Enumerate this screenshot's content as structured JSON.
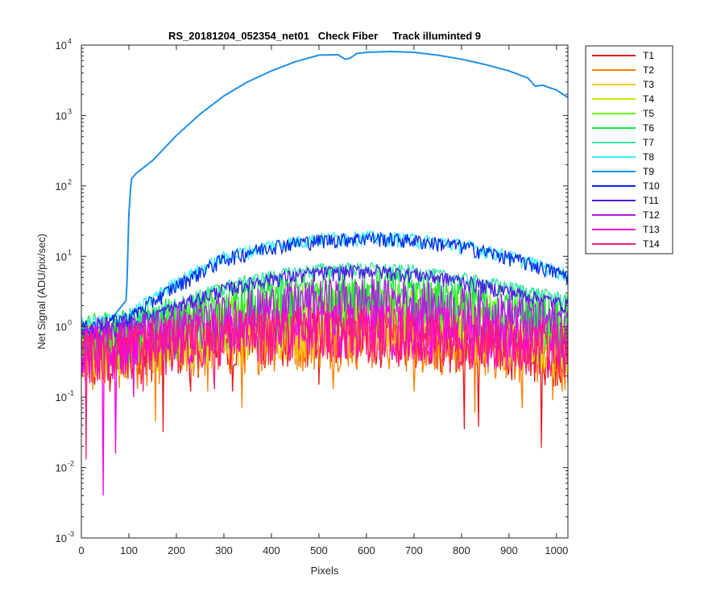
{
  "chart_data": {
    "type": "line",
    "title": "RS_20181204_052354_net01   Check Fiber     Track illuminted 9",
    "xlabel": "Pixels",
    "ylabel": "Net Signal (ADU/pix/sec)",
    "xlim": [
      0,
      1024
    ],
    "ylim": [
      0.001,
      10000
    ],
    "yscale": "log",
    "grid": false,
    "legend_position": "outside-right-top",
    "x_ticks": [
      0,
      100,
      200,
      300,
      400,
      500,
      600,
      700,
      800,
      900,
      1000
    ],
    "x_tick_labels": [
      "0",
      "100",
      "200",
      "300",
      "400",
      "500",
      "600",
      "700",
      "800",
      "900",
      "1000"
    ],
    "y_ticks": [
      0.001,
      0.01,
      0.1,
      1,
      10,
      100,
      1000,
      10000
    ],
    "y_tick_labels": [
      {
        "base": "10",
        "exp": "-3"
      },
      {
        "base": "10",
        "exp": "-2"
      },
      {
        "base": "10",
        "exp": "-1"
      },
      {
        "base": "10",
        "exp": "0"
      },
      {
        "base": "10",
        "exp": "1"
      },
      {
        "base": "10",
        "exp": "2"
      },
      {
        "base": "10",
        "exp": "3"
      },
      {
        "base": "10",
        "exp": "4"
      }
    ],
    "series": [
      {
        "name": "T1",
        "color": "#e41a1c",
        "x": [
          0,
          100,
          200,
          300,
          400,
          500,
          600,
          700,
          800,
          900,
          1024
        ],
        "y": [
          0.45,
          0.5,
          0.6,
          0.7,
          0.85,
          0.9,
          0.9,
          0.85,
          0.7,
          0.6,
          0.45
        ],
        "dips": [
          [
            15,
            0.22
          ],
          [
            28,
            0.15
          ],
          [
            60,
            0.12
          ],
          [
            105,
            0.18
          ],
          [
            172,
            0.032
          ],
          [
            230,
            0.12
          ],
          [
            318,
            0.12
          ],
          [
            500,
            0.15
          ],
          [
            805,
            0.035
          ],
          [
            835,
            0.038
          ],
          [
            968,
            0.019
          ]
        ]
      },
      {
        "name": "T2",
        "color": "#ff8000",
        "x": [
          0,
          100,
          200,
          300,
          400,
          500,
          600,
          700,
          800,
          900,
          1024
        ],
        "y": [
          0.4,
          0.45,
          0.55,
          0.65,
          0.75,
          0.8,
          0.8,
          0.75,
          0.65,
          0.55,
          0.4
        ],
        "dips": [
          [
            118,
            0.13
          ],
          [
            155,
            0.045
          ],
          [
            265,
            0.12
          ],
          [
            337,
            0.07
          ],
          [
            530,
            0.13
          ],
          [
            700,
            0.12
          ],
          [
            828,
            0.06
          ],
          [
            927,
            0.07
          ],
          [
            992,
            0.09
          ]
        ]
      },
      {
        "name": "T3",
        "color": "#ffcc00",
        "x": [
          0,
          100,
          200,
          300,
          400,
          500,
          600,
          700,
          800,
          900,
          1024
        ],
        "y": [
          0.5,
          0.6,
          0.75,
          0.9,
          1.1,
          1.2,
          1.2,
          1.1,
          0.95,
          0.8,
          0.6
        ]
      },
      {
        "name": "T4",
        "color": "#bfef00",
        "x": [
          0,
          100,
          200,
          300,
          400,
          500,
          600,
          700,
          800,
          900,
          1024
        ],
        "y": [
          0.55,
          0.65,
          0.85,
          1.1,
          1.4,
          1.6,
          1.6,
          1.45,
          1.2,
          0.95,
          0.7
        ]
      },
      {
        "name": "T5",
        "color": "#66ff00",
        "x": [
          0,
          100,
          200,
          300,
          400,
          500,
          600,
          700,
          800,
          900,
          1024
        ],
        "y": [
          0.75,
          0.9,
          1.2,
          1.6,
          2.0,
          2.3,
          2.3,
          2.1,
          1.8,
          1.5,
          1.2
        ]
      },
      {
        "name": "T6",
        "color": "#19e63c",
        "x": [
          0,
          100,
          200,
          300,
          400,
          500,
          600,
          700,
          800,
          900,
          1024
        ],
        "y": [
          0.8,
          1.0,
          1.5,
          2.3,
          3.0,
          3.6,
          3.7,
          3.4,
          2.8,
          2.2,
          1.5
        ]
      },
      {
        "name": "T7",
        "color": "#33e6a0",
        "x": [
          0,
          100,
          200,
          300,
          400,
          500,
          600,
          700,
          800,
          900,
          1024
        ],
        "y": [
          0.9,
          1.2,
          2.2,
          3.8,
          5.5,
          6.8,
          7.0,
          6.3,
          5.0,
          3.8,
          2.5
        ]
      },
      {
        "name": "T8",
        "color": "#33f0ff",
        "x": [
          0,
          100,
          200,
          300,
          400,
          500,
          600,
          700,
          800,
          900,
          1024
        ],
        "y": [
          1.1,
          1.5,
          4.5,
          10,
          15,
          18.5,
          19.5,
          18,
          15,
          10.5,
          5.8
        ]
      },
      {
        "name": "T9",
        "color": "#1e90e6",
        "x": [
          0,
          50,
          95,
          100,
          105,
          115,
          150,
          200,
          250,
          300,
          350,
          400,
          450,
          500,
          540,
          555,
          565,
          580,
          600,
          650,
          700,
          750,
          800,
          850,
          900,
          940,
          955,
          970,
          1000,
          1024
        ],
        "y": [
          0.9,
          1.0,
          2.4,
          40,
          125,
          150,
          230,
          520,
          1050,
          1900,
          3000,
          4300,
          5800,
          7200,
          7300,
          6300,
          6500,
          7600,
          7900,
          8100,
          7900,
          7200,
          6300,
          5300,
          4300,
          3400,
          2600,
          2700,
          2300,
          1800
        ]
      },
      {
        "name": "T10",
        "color": "#0a28e6",
        "x": [
          0,
          100,
          200,
          300,
          400,
          500,
          600,
          700,
          800,
          900,
          1024
        ],
        "y": [
          1.0,
          1.4,
          4.0,
          9.5,
          14.5,
          17.5,
          19,
          17.5,
          14.5,
          10,
          5.5
        ]
      },
      {
        "name": "T11",
        "color": "#4d19e6",
        "x": [
          0,
          100,
          200,
          300,
          400,
          500,
          600,
          700,
          800,
          900,
          1024
        ],
        "y": [
          0.8,
          1.1,
          2.0,
          3.5,
          5.0,
          6.0,
          6.5,
          5.8,
          4.6,
          3.3,
          2.1
        ]
      },
      {
        "name": "T12",
        "color": "#b319e6",
        "x": [
          0,
          100,
          200,
          300,
          400,
          500,
          600,
          700,
          800,
          900,
          1024
        ],
        "y": [
          0.7,
          0.85,
          1.1,
          1.5,
          2.1,
          2.6,
          2.7,
          2.4,
          2.0,
          1.6,
          1.2
        ]
      },
      {
        "name": "T13",
        "color": "#ff00e6",
        "x": [
          0,
          100,
          200,
          300,
          400,
          500,
          600,
          700,
          800,
          900,
          1024
        ],
        "y": [
          0.55,
          0.65,
          0.8,
          0.95,
          1.1,
          1.2,
          1.2,
          1.1,
          1.0,
          0.85,
          0.65
        ],
        "dips": [
          [
            45,
            0.004
          ],
          [
            72,
            0.016
          ],
          [
            110,
            0.1
          ]
        ]
      },
      {
        "name": "T14",
        "color": "#ff1a80",
        "x": [
          0,
          100,
          200,
          300,
          400,
          500,
          600,
          700,
          800,
          900,
          1024
        ],
        "y": [
          0.5,
          0.6,
          0.7,
          0.8,
          0.95,
          1.0,
          1.0,
          0.95,
          0.85,
          0.75,
          0.6
        ],
        "dips": [
          [
            10,
            0.013
          ],
          [
            130,
            0.12
          ],
          [
            280,
            0.13
          ]
        ]
      }
    ]
  }
}
